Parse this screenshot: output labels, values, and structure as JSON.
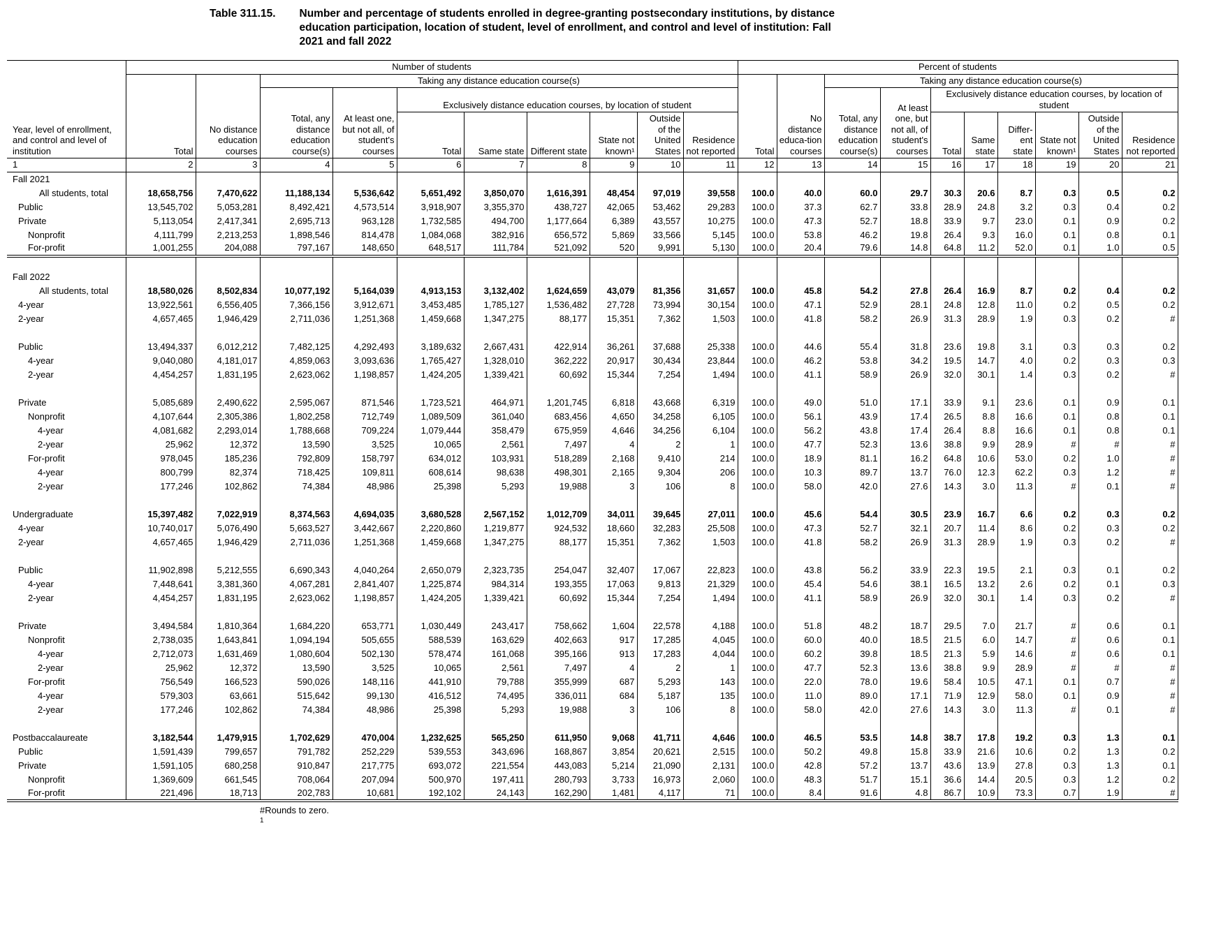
{
  "title": {
    "label": "Table 311.15.",
    "text": "Number and percentage of students enrolled in degree-granting postsecondary institutions, by distance education participation, location of student, level of enrollment, and control and level of institution: Fall 2021 and fall 2022"
  },
  "header": {
    "stub": "Year, level of enrollment, and control and level of institution",
    "group_number": "Number of students",
    "group_percent": "Percent of students",
    "taking_any": "Taking any distance education course(s)",
    "exclusively": "Exclusively distance education courses, by location of student",
    "number_leaves": [
      "Total",
      "No distance education courses",
      "Total, any distance education course(s)",
      "At least one, but not all, of student's courses",
      "Total",
      "Same state",
      "Different state",
      "State not known¹",
      "Outside of the United States",
      "Residence not reported"
    ],
    "percent_leaves": [
      "Total",
      "No distance educa-tion courses",
      "Total, any distance education course(s)",
      "At least one, but not all, of student's courses",
      "Total",
      "Same state",
      "Differ-ent state",
      "State not known¹",
      "Outside of the United States",
      "Residence not reported"
    ]
  },
  "column_numbers": [
    "1",
    "2",
    "3",
    "4",
    "5",
    "6",
    "7",
    "8",
    "9",
    "10",
    "11",
    "12",
    "13",
    "14",
    "15",
    "16",
    "17",
    "18",
    "19",
    "20",
    "21"
  ],
  "rows": [
    {
      "t": "section",
      "l": "Fall 2021",
      "i": 0,
      "b": true
    },
    {
      "t": "data",
      "l": "All students, total",
      "w": true,
      "b": true,
      "v": [
        "18,658,756",
        "7,470,622",
        "11,188,134",
        "5,536,642",
        "5,651,492",
        "3,850,070",
        "1,616,391",
        "48,454",
        "97,019",
        "39,558",
        "100.0",
        "40.0",
        "60.0",
        "29.7",
        "30.3",
        "20.6",
        "8.7",
        "0.3",
        "0.5",
        "0.2"
      ]
    },
    {
      "t": "data",
      "l": "Public",
      "i": 1,
      "v": [
        "13,545,702",
        "5,053,281",
        "8,492,421",
        "4,573,514",
        "3,918,907",
        "3,355,370",
        "438,727",
        "42,065",
        "53,462",
        "29,283",
        "100.0",
        "37.3",
        "62.7",
        "33.8",
        "28.9",
        "24.8",
        "3.2",
        "0.3",
        "0.4",
        "0.2"
      ]
    },
    {
      "t": "data",
      "l": "Private",
      "i": 1,
      "v": [
        "5,113,054",
        "2,417,341",
        "2,695,713",
        "963,128",
        "1,732,585",
        "494,700",
        "1,177,664",
        "6,389",
        "43,557",
        "10,275",
        "100.0",
        "47.3",
        "52.7",
        "18.8",
        "33.9",
        "9.7",
        "23.0",
        "0.1",
        "0.9",
        "0.2"
      ]
    },
    {
      "t": "data",
      "l": "Nonprofit",
      "i": 2,
      "v": [
        "4,111,799",
        "2,213,253",
        "1,898,546",
        "814,478",
        "1,084,068",
        "382,916",
        "656,572",
        "5,869",
        "33,566",
        "5,145",
        "100.0",
        "53.8",
        "46.2",
        "19.8",
        "26.4",
        "9.3",
        "16.0",
        "0.1",
        "0.8",
        "0.1"
      ]
    },
    {
      "t": "data",
      "l": "For-profit",
      "i": 2,
      "c": "divider",
      "v": [
        "1,001,255",
        "204,088",
        "797,167",
        "148,650",
        "648,517",
        "111,784",
        "521,092",
        "520",
        "9,991",
        "5,130",
        "100.0",
        "20.4",
        "79.6",
        "14.8",
        "64.8",
        "11.2",
        "52.0",
        "0.1",
        "1.0",
        "0.5"
      ]
    },
    {
      "t": "spacer"
    },
    {
      "t": "section",
      "l": "Fall 2022",
      "i": 0,
      "b": true
    },
    {
      "t": "data",
      "l": "All students, total",
      "w": true,
      "b": true,
      "v": [
        "18,580,026",
        "8,502,834",
        "10,077,192",
        "5,164,039",
        "4,913,153",
        "3,132,402",
        "1,624,659",
        "43,079",
        "81,356",
        "31,657",
        "100.0",
        "45.8",
        "54.2",
        "27.8",
        "26.4",
        "16.9",
        "8.7",
        "0.2",
        "0.4",
        "0.2"
      ]
    },
    {
      "t": "data",
      "l": "4-year",
      "i": 1,
      "v": [
        "13,922,561",
        "6,556,405",
        "7,366,156",
        "3,912,671",
        "3,453,485",
        "1,785,127",
        "1,536,482",
        "27,728",
        "73,994",
        "30,154",
        "100.0",
        "47.1",
        "52.9",
        "28.1",
        "24.8",
        "12.8",
        "11.0",
        "0.2",
        "0.5",
        "0.2"
      ]
    },
    {
      "t": "data",
      "l": "2-year",
      "i": 1,
      "v": [
        "4,657,465",
        "1,946,429",
        "2,711,036",
        "1,251,368",
        "1,459,668",
        "1,347,275",
        "88,177",
        "15,351",
        "7,362",
        "1,503",
        "100.0",
        "41.8",
        "58.2",
        "26.9",
        "31.3",
        "28.9",
        "1.9",
        "0.3",
        "0.2",
        "#"
      ]
    },
    {
      "t": "spacer"
    },
    {
      "t": "data",
      "l": "Public",
      "i": 1,
      "v": [
        "13,494,337",
        "6,012,212",
        "7,482,125",
        "4,292,493",
        "3,189,632",
        "2,667,431",
        "422,914",
        "36,261",
        "37,688",
        "25,338",
        "100.0",
        "44.6",
        "55.4",
        "31.8",
        "23.6",
        "19.8",
        "3.1",
        "0.3",
        "0.3",
        "0.2"
      ]
    },
    {
      "t": "data",
      "l": "4-year",
      "i": 2,
      "v": [
        "9,040,080",
        "4,181,017",
        "4,859,063",
        "3,093,636",
        "1,765,427",
        "1,328,010",
        "362,222",
        "20,917",
        "30,434",
        "23,844",
        "100.0",
        "46.2",
        "53.8",
        "34.2",
        "19.5",
        "14.7",
        "4.0",
        "0.2",
        "0.3",
        "0.3"
      ]
    },
    {
      "t": "data",
      "l": "2-year",
      "i": 2,
      "v": [
        "4,454,257",
        "1,831,195",
        "2,623,062",
        "1,198,857",
        "1,424,205",
        "1,339,421",
        "60,692",
        "15,344",
        "7,254",
        "1,494",
        "100.0",
        "41.1",
        "58.9",
        "26.9",
        "32.0",
        "30.1",
        "1.4",
        "0.3",
        "0.2",
        "#"
      ]
    },
    {
      "t": "spacer"
    },
    {
      "t": "data",
      "l": "Private",
      "i": 1,
      "v": [
        "5,085,689",
        "2,490,622",
        "2,595,067",
        "871,546",
        "1,723,521",
        "464,971",
        "1,201,745",
        "6,818",
        "43,668",
        "6,319",
        "100.0",
        "49.0",
        "51.0",
        "17.1",
        "33.9",
        "9.1",
        "23.6",
        "0.1",
        "0.9",
        "0.1"
      ]
    },
    {
      "t": "data",
      "l": "Nonprofit",
      "i": 2,
      "v": [
        "4,107,644",
        "2,305,386",
        "1,802,258",
        "712,749",
        "1,089,509",
        "361,040",
        "683,456",
        "4,650",
        "34,258",
        "6,105",
        "100.0",
        "56.1",
        "43.9",
        "17.4",
        "26.5",
        "8.8",
        "16.6",
        "0.1",
        "0.8",
        "0.1"
      ]
    },
    {
      "t": "data",
      "l": "4-year",
      "i": 3,
      "v": [
        "4,081,682",
        "2,293,014",
        "1,788,668",
        "709,224",
        "1,079,444",
        "358,479",
        "675,959",
        "4,646",
        "34,256",
        "6,104",
        "100.0",
        "56.2",
        "43.8",
        "17.4",
        "26.4",
        "8.8",
        "16.6",
        "0.1",
        "0.8",
        "0.1"
      ]
    },
    {
      "t": "data",
      "l": "2-year",
      "i": 3,
      "v": [
        "25,962",
        "12,372",
        "13,590",
        "3,525",
        "10,065",
        "2,561",
        "7,497",
        "4",
        "2",
        "1",
        "100.0",
        "47.7",
        "52.3",
        "13.6",
        "38.8",
        "9.9",
        "28.9",
        "#",
        "#",
        "#"
      ]
    },
    {
      "t": "data",
      "l": "For-profit",
      "i": 2,
      "v": [
        "978,045",
        "185,236",
        "792,809",
        "158,797",
        "634,012",
        "103,931",
        "518,289",
        "2,168",
        "9,410",
        "214",
        "100.0",
        "18.9",
        "81.1",
        "16.2",
        "64.8",
        "10.6",
        "53.0",
        "0.2",
        "1.0",
        "#"
      ]
    },
    {
      "t": "data",
      "l": "4-year",
      "i": 3,
      "v": [
        "800,799",
        "82,374",
        "718,425",
        "109,811",
        "608,614",
        "98,638",
        "498,301",
        "2,165",
        "9,304",
        "206",
        "100.0",
        "10.3",
        "89.7",
        "13.7",
        "76.0",
        "12.3",
        "62.2",
        "0.3",
        "1.2",
        "#"
      ]
    },
    {
      "t": "data",
      "l": "2-year",
      "i": 3,
      "v": [
        "177,246",
        "102,862",
        "74,384",
        "48,986",
        "25,398",
        "5,293",
        "19,988",
        "3",
        "106",
        "8",
        "100.0",
        "58.0",
        "42.0",
        "27.6",
        "14.3",
        "3.0",
        "11.3",
        "#",
        "0.1",
        "#"
      ]
    },
    {
      "t": "spacer"
    },
    {
      "t": "data",
      "l": "Undergraduate",
      "i": 0,
      "b": true,
      "v": [
        "15,397,482",
        "7,022,919",
        "8,374,563",
        "4,694,035",
        "3,680,528",
        "2,567,152",
        "1,012,709",
        "34,011",
        "39,645",
        "27,011",
        "100.0",
        "45.6",
        "54.4",
        "30.5",
        "23.9",
        "16.7",
        "6.6",
        "0.2",
        "0.3",
        "0.2"
      ]
    },
    {
      "t": "data",
      "l": "4-year",
      "i": 1,
      "v": [
        "10,740,017",
        "5,076,490",
        "5,663,527",
        "3,442,667",
        "2,220,860",
        "1,219,877",
        "924,532",
        "18,660",
        "32,283",
        "25,508",
        "100.0",
        "47.3",
        "52.7",
        "32.1",
        "20.7",
        "11.4",
        "8.6",
        "0.2",
        "0.3",
        "0.2"
      ]
    },
    {
      "t": "data",
      "l": "2-year",
      "i": 1,
      "v": [
        "4,657,465",
        "1,946,429",
        "2,711,036",
        "1,251,368",
        "1,459,668",
        "1,347,275",
        "88,177",
        "15,351",
        "7,362",
        "1,503",
        "100.0",
        "41.8",
        "58.2",
        "26.9",
        "31.3",
        "28.9",
        "1.9",
        "0.3",
        "0.2",
        "#"
      ]
    },
    {
      "t": "spacer"
    },
    {
      "t": "data",
      "l": "Public",
      "i": 1,
      "v": [
        "11,902,898",
        "5,212,555",
        "6,690,343",
        "4,040,264",
        "2,650,079",
        "2,323,735",
        "254,047",
        "32,407",
        "17,067",
        "22,823",
        "100.0",
        "43.8",
        "56.2",
        "33.9",
        "22.3",
        "19.5",
        "2.1",
        "0.3",
        "0.1",
        "0.2"
      ]
    },
    {
      "t": "data",
      "l": "4-year",
      "i": 2,
      "v": [
        "7,448,641",
        "3,381,360",
        "4,067,281",
        "2,841,407",
        "1,225,874",
        "984,314",
        "193,355",
        "17,063",
        "9,813",
        "21,329",
        "100.0",
        "45.4",
        "54.6",
        "38.1",
        "16.5",
        "13.2",
        "2.6",
        "0.2",
        "0.1",
        "0.3"
      ]
    },
    {
      "t": "data",
      "l": "2-year",
      "i": 2,
      "v": [
        "4,454,257",
        "1,831,195",
        "2,623,062",
        "1,198,857",
        "1,424,205",
        "1,339,421",
        "60,692",
        "15,344",
        "7,254",
        "1,494",
        "100.0",
        "41.1",
        "58.9",
        "26.9",
        "32.0",
        "30.1",
        "1.4",
        "0.3",
        "0.2",
        "#"
      ]
    },
    {
      "t": "spacer"
    },
    {
      "t": "data",
      "l": "Private",
      "i": 1,
      "v": [
        "3,494,584",
        "1,810,364",
        "1,684,220",
        "653,771",
        "1,030,449",
        "243,417",
        "758,662",
        "1,604",
        "22,578",
        "4,188",
        "100.0",
        "51.8",
        "48.2",
        "18.7",
        "29.5",
        "7.0",
        "21.7",
        "#",
        "0.6",
        "0.1"
      ]
    },
    {
      "t": "data",
      "l": "Nonprofit",
      "i": 2,
      "v": [
        "2,738,035",
        "1,643,841",
        "1,094,194",
        "505,655",
        "588,539",
        "163,629",
        "402,663",
        "917",
        "17,285",
        "4,045",
        "100.0",
        "60.0",
        "40.0",
        "18.5",
        "21.5",
        "6.0",
        "14.7",
        "#",
        "0.6",
        "0.1"
      ]
    },
    {
      "t": "data",
      "l": "4-year",
      "i": 3,
      "v": [
        "2,712,073",
        "1,631,469",
        "1,080,604",
        "502,130",
        "578,474",
        "161,068",
        "395,166",
        "913",
        "17,283",
        "4,044",
        "100.0",
        "60.2",
        "39.8",
        "18.5",
        "21.3",
        "5.9",
        "14.6",
        "#",
        "0.6",
        "0.1"
      ]
    },
    {
      "t": "data",
      "l": "2-year",
      "i": 3,
      "v": [
        "25,962",
        "12,372",
        "13,590",
        "3,525",
        "10,065",
        "2,561",
        "7,497",
        "4",
        "2",
        "1",
        "100.0",
        "47.7",
        "52.3",
        "13.6",
        "38.8",
        "9.9",
        "28.9",
        "#",
        "#",
        "#"
      ]
    },
    {
      "t": "data",
      "l": "For-profit",
      "i": 2,
      "v": [
        "756,549",
        "166,523",
        "590,026",
        "148,116",
        "441,910",
        "79,788",
        "355,999",
        "687",
        "5,293",
        "143",
        "100.0",
        "22.0",
        "78.0",
        "19.6",
        "58.4",
        "10.5",
        "47.1",
        "0.1",
        "0.7",
        "#"
      ]
    },
    {
      "t": "data",
      "l": "4-year",
      "i": 3,
      "v": [
        "579,303",
        "63,661",
        "515,642",
        "99,130",
        "416,512",
        "74,495",
        "336,011",
        "684",
        "5,187",
        "135",
        "100.0",
        "11.0",
        "89.0",
        "17.1",
        "71.9",
        "12.9",
        "58.0",
        "0.1",
        "0.9",
        "#"
      ]
    },
    {
      "t": "data",
      "l": "2-year",
      "i": 3,
      "v": [
        "177,246",
        "102,862",
        "74,384",
        "48,986",
        "25,398",
        "5,293",
        "19,988",
        "3",
        "106",
        "8",
        "100.0",
        "58.0",
        "42.0",
        "27.6",
        "14.3",
        "3.0",
        "11.3",
        "#",
        "0.1",
        "#"
      ]
    },
    {
      "t": "spacer"
    },
    {
      "t": "data",
      "l": "Postbaccalaureate",
      "i": 0,
      "b": true,
      "v": [
        "3,182,544",
        "1,479,915",
        "1,702,629",
        "470,004",
        "1,232,625",
        "565,250",
        "611,950",
        "9,068",
        "41,711",
        "4,646",
        "100.0",
        "46.5",
        "53.5",
        "14.8",
        "38.7",
        "17.8",
        "19.2",
        "0.3",
        "1.3",
        "0.1"
      ]
    },
    {
      "t": "data",
      "l": "Public",
      "i": 1,
      "v": [
        "1,591,439",
        "799,657",
        "791,782",
        "252,229",
        "539,553",
        "343,696",
        "168,867",
        "3,854",
        "20,621",
        "2,515",
        "100.0",
        "50.2",
        "49.8",
        "15.8",
        "33.9",
        "21.6",
        "10.6",
        "0.2",
        "1.3",
        "0.2"
      ]
    },
    {
      "t": "data",
      "l": "Private",
      "i": 1,
      "v": [
        "1,591,105",
        "680,258",
        "910,847",
        "217,775",
        "693,072",
        "221,554",
        "443,083",
        "5,214",
        "21,090",
        "2,131",
        "100.0",
        "42.8",
        "57.2",
        "13.7",
        "43.6",
        "13.9",
        "27.8",
        "0.3",
        "1.3",
        "0.1"
      ]
    },
    {
      "t": "data",
      "l": "Nonprofit",
      "i": 2,
      "v": [
        "1,369,609",
        "661,545",
        "708,064",
        "207,094",
        "500,970",
        "197,411",
        "280,793",
        "3,733",
        "16,973",
        "2,060",
        "100.0",
        "48.3",
        "51.7",
        "15.1",
        "36.6",
        "14.4",
        "20.5",
        "0.3",
        "1.2",
        "0.2"
      ]
    },
    {
      "t": "data",
      "l": "For-profit",
      "i": 2,
      "c": "end",
      "v": [
        "221,496",
        "18,713",
        "202,783",
        "10,681",
        "192,102",
        "24,143",
        "162,290",
        "1,481",
        "4,117",
        "71",
        "100.0",
        "8.4",
        "91.6",
        "4.8",
        "86.7",
        "10.9",
        "73.3",
        "0.7",
        "1.9",
        "#"
      ]
    }
  ],
  "footnotes": [
    "#Rounds to zero.",
    "1"
  ]
}
